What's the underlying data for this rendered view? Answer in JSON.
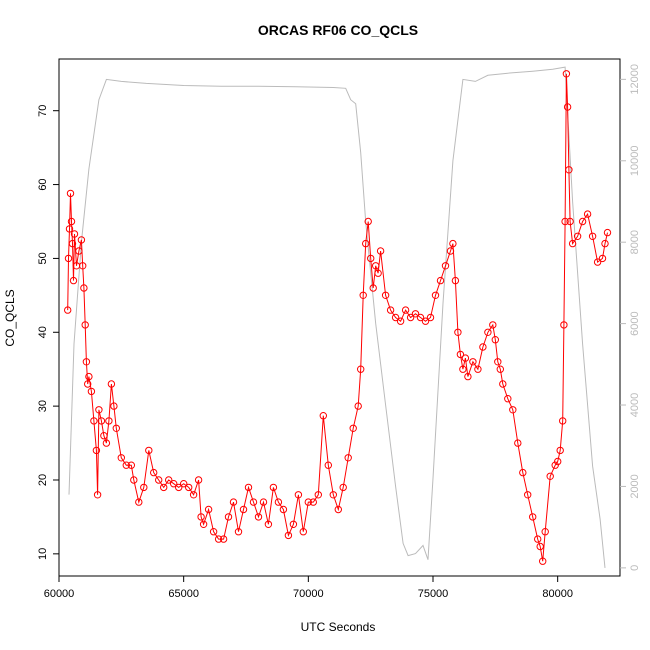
{
  "chart_data": {
    "type": "scatter",
    "title": "ORCAS RF06 CO_QCLS",
    "xlabel": "UTC Seconds",
    "ylabel": "CO_QCLS",
    "xlim": [
      60000,
      82500
    ],
    "ylim": [
      7,
      77
    ],
    "y2lim": [
      -200,
      12500
    ],
    "x_ticks": [
      60000,
      65000,
      70000,
      75000,
      80000
    ],
    "x_tick_labels": [
      "60000",
      "65000",
      "70000",
      "75000",
      "80000"
    ],
    "y_ticks": [
      10,
      20,
      30,
      40,
      50,
      60,
      70
    ],
    "y_tick_labels": [
      "10",
      "20",
      "30",
      "40",
      "50",
      "60",
      "70"
    ],
    "y2_ticks": [
      0,
      2000,
      4000,
      6000,
      8000,
      10000,
      12000
    ],
    "y2_tick_labels": [
      "0",
      "2000",
      "4000",
      "6000",
      "8000",
      "10000",
      "12000"
    ],
    "grid": false,
    "series": [
      {
        "color": "#ff0000",
        "marker": "open-circle",
        "axis": "left",
        "points": [
          [
            60350,
            43
          ],
          [
            60380,
            50
          ],
          [
            60420,
            54
          ],
          [
            60460,
            58.8
          ],
          [
            60500,
            55
          ],
          [
            60540,
            52
          ],
          [
            60580,
            47
          ],
          [
            60620,
            53.3
          ],
          [
            60700,
            49
          ],
          [
            60800,
            51
          ],
          [
            60900,
            52.5
          ],
          [
            60950,
            49
          ],
          [
            61000,
            46
          ],
          [
            61050,
            41
          ],
          [
            61100,
            36
          ],
          [
            61150,
            33
          ],
          [
            61200,
            34
          ],
          [
            61300,
            32
          ],
          [
            61400,
            28
          ],
          [
            61500,
            24
          ],
          [
            61550,
            18
          ],
          [
            61600,
            29.5
          ],
          [
            61700,
            28
          ],
          [
            61800,
            26
          ],
          [
            61900,
            25
          ],
          [
            62000,
            28
          ],
          [
            62100,
            33
          ],
          [
            62200,
            30
          ],
          [
            62300,
            27
          ],
          [
            62500,
            23
          ],
          [
            62700,
            22
          ],
          [
            62900,
            22
          ],
          [
            63000,
            20
          ],
          [
            63200,
            17
          ],
          [
            63400,
            19
          ],
          [
            63600,
            24
          ],
          [
            63800,
            21
          ],
          [
            64000,
            20
          ],
          [
            64200,
            19
          ],
          [
            64400,
            20
          ],
          [
            64600,
            19.5
          ],
          [
            64800,
            19
          ],
          [
            65000,
            19.5
          ],
          [
            65200,
            19
          ],
          [
            65400,
            18
          ],
          [
            65600,
            20
          ],
          [
            65700,
            15
          ],
          [
            65800,
            14
          ],
          [
            66000,
            16
          ],
          [
            66200,
            13
          ],
          [
            66400,
            12
          ],
          [
            66600,
            12
          ],
          [
            66800,
            15
          ],
          [
            67000,
            17
          ],
          [
            67200,
            13
          ],
          [
            67400,
            16
          ],
          [
            67600,
            19
          ],
          [
            67800,
            17
          ],
          [
            68000,
            15
          ],
          [
            68200,
            17
          ],
          [
            68400,
            14
          ],
          [
            68600,
            19
          ],
          [
            68800,
            17
          ],
          [
            69000,
            16
          ],
          [
            69200,
            12.5
          ],
          [
            69400,
            14
          ],
          [
            69600,
            18
          ],
          [
            69800,
            13
          ],
          [
            70000,
            17
          ],
          [
            70200,
            17
          ],
          [
            70400,
            18
          ],
          [
            70600,
            28.7
          ],
          [
            70800,
            22
          ],
          [
            71000,
            18
          ],
          [
            71200,
            16
          ],
          [
            71400,
            19
          ],
          [
            71600,
            23
          ],
          [
            71800,
            27
          ],
          [
            72000,
            30
          ],
          [
            72100,
            35
          ],
          [
            72200,
            45
          ],
          [
            72300,
            52
          ],
          [
            72400,
            55
          ],
          [
            72500,
            50
          ],
          [
            72600,
            46
          ],
          [
            72700,
            49
          ],
          [
            72800,
            48
          ],
          [
            72900,
            51
          ],
          [
            73100,
            45
          ],
          [
            73300,
            43
          ],
          [
            73500,
            42
          ],
          [
            73700,
            41.5
          ],
          [
            73900,
            43
          ],
          [
            74100,
            42
          ],
          [
            74300,
            42.5
          ],
          [
            74500,
            42
          ],
          [
            74700,
            41.5
          ],
          [
            74900,
            42
          ],
          [
            75100,
            45
          ],
          [
            75300,
            47
          ],
          [
            75500,
            49
          ],
          [
            75700,
            51
          ],
          [
            75800,
            52
          ],
          [
            75900,
            47
          ],
          [
            76000,
            40
          ],
          [
            76100,
            37
          ],
          [
            76200,
            35
          ],
          [
            76300,
            36.5
          ],
          [
            76400,
            34
          ],
          [
            76600,
            36
          ],
          [
            76800,
            35
          ],
          [
            77000,
            38
          ],
          [
            77200,
            40
          ],
          [
            77400,
            41
          ],
          [
            77500,
            39
          ],
          [
            77600,
            36
          ],
          [
            77700,
            35
          ],
          [
            77800,
            33
          ],
          [
            78000,
            31
          ],
          [
            78200,
            29.5
          ],
          [
            78400,
            25
          ],
          [
            78600,
            21
          ],
          [
            78800,
            18
          ],
          [
            79000,
            15
          ],
          [
            79200,
            12
          ],
          [
            79300,
            11
          ],
          [
            79400,
            9
          ],
          [
            79500,
            13
          ],
          [
            79700,
            20.5
          ],
          [
            79900,
            22
          ],
          [
            80000,
            22.5
          ],
          [
            80100,
            24
          ],
          [
            80200,
            28
          ],
          [
            80250,
            41
          ],
          [
            80300,
            55
          ],
          [
            80350,
            75
          ],
          [
            80400,
            70.5
          ],
          [
            80450,
            62
          ],
          [
            80500,
            55
          ],
          [
            80600,
            52
          ],
          [
            80800,
            53
          ],
          [
            81000,
            55
          ],
          [
            81200,
            56
          ],
          [
            81400,
            53
          ],
          [
            81600,
            49.5
          ],
          [
            81800,
            50
          ],
          [
            81900,
            52
          ],
          [
            82000,
            53.5
          ]
        ]
      },
      {
        "color": "#bbbbbb",
        "marker": "line",
        "axis": "right",
        "points": [
          [
            60400,
            1800
          ],
          [
            60600,
            5500
          ],
          [
            60900,
            8000
          ],
          [
            61200,
            9800
          ],
          [
            61600,
            11500
          ],
          [
            61900,
            12000
          ],
          [
            62500,
            11950
          ],
          [
            63500,
            11900
          ],
          [
            65000,
            11850
          ],
          [
            66500,
            11830
          ],
          [
            68000,
            11830
          ],
          [
            69500,
            11820
          ],
          [
            71000,
            11800
          ],
          [
            71500,
            11780
          ],
          [
            71700,
            11500
          ],
          [
            71900,
            11400
          ],
          [
            72100,
            10200
          ],
          [
            72300,
            8500
          ],
          [
            72700,
            6000
          ],
          [
            73100,
            4000
          ],
          [
            73500,
            2000
          ],
          [
            73800,
            600
          ],
          [
            74000,
            300
          ],
          [
            74300,
            350
          ],
          [
            74600,
            550
          ],
          [
            74800,
            200
          ],
          [
            75000,
            2200
          ],
          [
            75400,
            6500
          ],
          [
            75800,
            10000
          ],
          [
            76200,
            12000
          ],
          [
            76700,
            11950
          ],
          [
            77200,
            12100
          ],
          [
            78000,
            12150
          ],
          [
            79000,
            12200
          ],
          [
            79800,
            12250
          ],
          [
            80300,
            12300
          ],
          [
            80600,
            9000
          ],
          [
            81000,
            5500
          ],
          [
            81400,
            2500
          ],
          [
            81700,
            1200
          ],
          [
            81900,
            0
          ]
        ]
      }
    ]
  }
}
